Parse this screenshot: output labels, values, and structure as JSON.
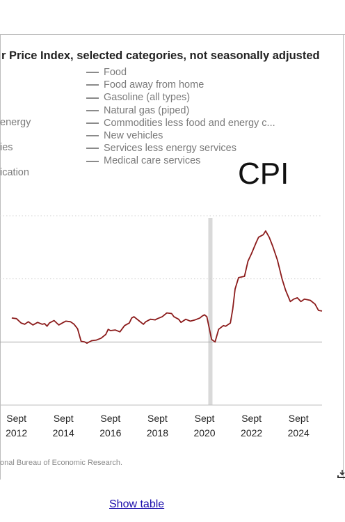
{
  "header": {
    "title": "r Price Index, selected categories, not seasonally adjusted"
  },
  "legend": {
    "items": [
      "Food",
      "Food away from home",
      "Gasoline (all types)",
      "Natural gas (piped)",
      "Commodities less food and energy c...",
      "New vehicles",
      "Services less energy services",
      "Medical care services"
    ],
    "left_fragments": [
      "energy",
      "ies",
      "ication"
    ]
  },
  "annotation": {
    "cpi_label": "CPI"
  },
  "footer": {
    "source": "onal Bureau of Economic Research.",
    "show_table": "Show table"
  },
  "colors": {
    "line": "#8b1a1a",
    "recession": "#d9d9d9",
    "grid": "#cfcfcf"
  },
  "chart_data": {
    "type": "line",
    "series": [
      {
        "color": "#8b1a1a",
        "points": [
          [
            2011.8,
            1.9
          ],
          [
            2012.0,
            1.85
          ],
          [
            2012.2,
            1.5
          ],
          [
            2012.35,
            1.4
          ],
          [
            2012.5,
            1.6
          ],
          [
            2012.7,
            1.35
          ],
          [
            2012.9,
            1.55
          ],
          [
            2013.1,
            1.4
          ],
          [
            2013.2,
            1.45
          ],
          [
            2013.3,
            1.25
          ],
          [
            2013.4,
            1.5
          ],
          [
            2013.6,
            1.7
          ],
          [
            2013.8,
            1.35
          ],
          [
            2014.0,
            1.55
          ],
          [
            2014.1,
            1.65
          ],
          [
            2014.3,
            1.6
          ],
          [
            2014.45,
            1.4
          ],
          [
            2014.6,
            1.05
          ],
          [
            2014.75,
            0.05
          ],
          [
            2014.9,
            0.0
          ],
          [
            2015.0,
            -0.1
          ],
          [
            2015.2,
            0.1
          ],
          [
            2015.4,
            0.15
          ],
          [
            2015.6,
            0.3
          ],
          [
            2015.8,
            0.6
          ],
          [
            2015.9,
            1.0
          ],
          [
            2016.0,
            0.9
          ],
          [
            2016.2,
            0.95
          ],
          [
            2016.4,
            0.8
          ],
          [
            2016.6,
            1.3
          ],
          [
            2016.8,
            1.5
          ],
          [
            2016.9,
            1.9
          ],
          [
            2017.0,
            2.0
          ],
          [
            2017.2,
            1.7
          ],
          [
            2017.4,
            1.4
          ],
          [
            2017.5,
            1.6
          ],
          [
            2017.7,
            1.8
          ],
          [
            2017.9,
            1.75
          ],
          [
            2018.0,
            1.85
          ],
          [
            2018.2,
            2.0
          ],
          [
            2018.4,
            2.3
          ],
          [
            2018.6,
            2.25
          ],
          [
            2018.7,
            2.0
          ],
          [
            2018.9,
            1.8
          ],
          [
            2019.0,
            1.55
          ],
          [
            2019.2,
            1.8
          ],
          [
            2019.4,
            1.65
          ],
          [
            2019.6,
            1.75
          ],
          [
            2019.8,
            1.9
          ],
          [
            2019.9,
            2.05
          ],
          [
            2020.0,
            2.15
          ],
          [
            2020.1,
            2.0
          ],
          [
            2020.3,
            0.2
          ],
          [
            2020.45,
            0.0
          ],
          [
            2020.6,
            1.0
          ],
          [
            2020.8,
            1.3
          ],
          [
            2020.9,
            1.25
          ],
          [
            2021.1,
            1.5
          ],
          [
            2021.2,
            2.6
          ],
          [
            2021.3,
            4.2
          ],
          [
            2021.45,
            5.1
          ],
          [
            2021.7,
            5.2
          ],
          [
            2021.85,
            6.4
          ],
          [
            2022.0,
            7.0
          ],
          [
            2022.2,
            7.9
          ],
          [
            2022.3,
            8.3
          ],
          [
            2022.5,
            8.5
          ],
          [
            2022.6,
            8.8
          ],
          [
            2022.75,
            8.3
          ],
          [
            2022.9,
            7.6
          ],
          [
            2023.1,
            6.5
          ],
          [
            2023.3,
            5.0
          ],
          [
            2023.45,
            4.1
          ],
          [
            2023.65,
            3.2
          ],
          [
            2023.8,
            3.4
          ],
          [
            2023.95,
            3.5
          ],
          [
            2024.1,
            3.2
          ],
          [
            2024.25,
            3.4
          ],
          [
            2024.5,
            3.3
          ],
          [
            2024.7,
            3.0
          ],
          [
            2024.85,
            2.5
          ],
          [
            2025.0,
            2.45
          ]
        ]
      }
    ],
    "x_ticks": [
      {
        "top": "Sept",
        "bottom": "2012",
        "x": 2012.0
      },
      {
        "top": "Sept",
        "bottom": "2014",
        "x": 2014.0
      },
      {
        "top": "Sept",
        "bottom": "2016",
        "x": 2016.0
      },
      {
        "top": "Sept",
        "bottom": "2018",
        "x": 2018.0
      },
      {
        "top": "Sept",
        "bottom": "2020",
        "x": 2020.0
      },
      {
        "top": "Sept",
        "bottom": "2022",
        "x": 2022.0
      },
      {
        "top": "Sept",
        "bottom": "2024",
        "x": 2024.0
      }
    ],
    "gridlines_y": [
      0,
      5,
      10
    ],
    "recession_x": 2020.25,
    "xlim": [
      2011.3,
      2025.0
    ],
    "ylim": [
      -5,
      10
    ],
    "grid": true
  }
}
